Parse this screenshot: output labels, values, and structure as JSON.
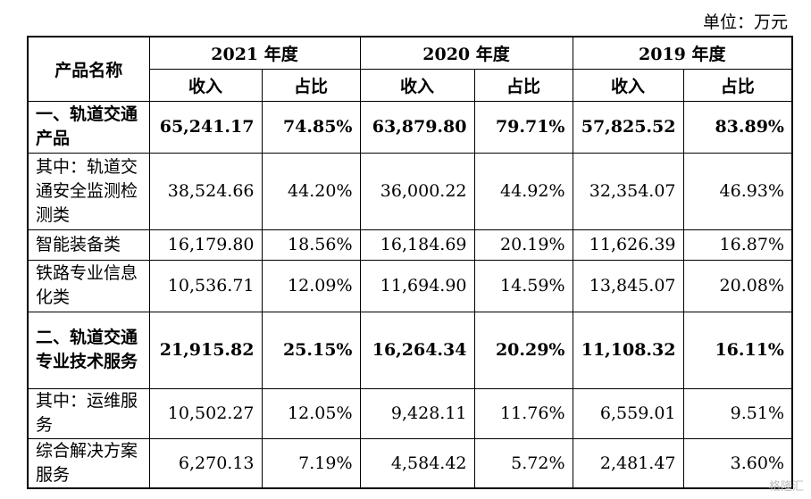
{
  "unit_label": "单位：万元",
  "header": {
    "product_col": "产品名称",
    "years": [
      "2021 年度",
      "2020 年度",
      "2019 年度"
    ],
    "sub_income": "收入",
    "sub_ratio": "占比"
  },
  "rows": [
    {
      "name": "一、轨道交通产品",
      "bold": true,
      "cells": [
        "65,241.17",
        "74.85%",
        "63,879.80",
        "79.71%",
        "57,825.52",
        "83.89%"
      ]
    },
    {
      "name": "其中：轨道交通安全监测检测类",
      "bold": false,
      "cells": [
        "38,524.66",
        "44.20%",
        "36,000.22",
        "44.92%",
        "32,354.07",
        "46.93%"
      ]
    },
    {
      "name": "智能装备类",
      "bold": false,
      "cells": [
        "16,179.80",
        "18.56%",
        "16,184.69",
        "20.19%",
        "11,626.39",
        "16.87%"
      ]
    },
    {
      "name": "铁路专业信息化类",
      "bold": false,
      "cells": [
        "10,536.71",
        "12.09%",
        "11,694.90",
        "14.59%",
        "13,845.07",
        "20.08%"
      ]
    },
    {
      "name": "二、轨道交通专业技术服务",
      "bold": true,
      "cells": [
        "21,915.82",
        "25.15%",
        "16,264.34",
        "20.29%",
        "11,108.32",
        "16.11%"
      ]
    },
    {
      "name": "其中：运维服务",
      "bold": false,
      "cells": [
        "10,502.27",
        "12.05%",
        "9,428.11",
        "11.76%",
        "6,559.01",
        "9.51%"
      ]
    },
    {
      "name": "综合解决方案服务",
      "bold": false,
      "cells": [
        "6,270.13",
        "7.19%",
        "4,584.42",
        "5.72%",
        "2,481.47",
        "3.60%"
      ]
    }
  ],
  "watermark": "格隆汇"
}
